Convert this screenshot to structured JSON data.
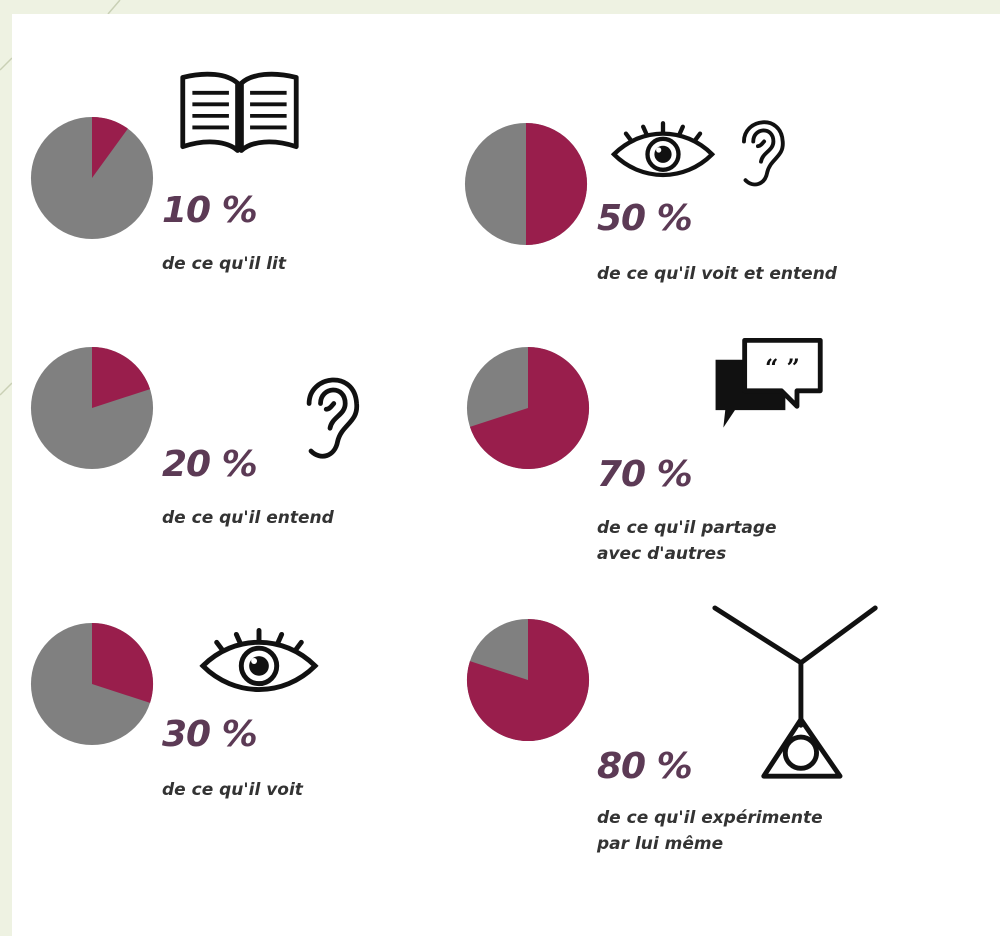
{
  "chart_data": {
    "type": "pie",
    "colors": {
      "remembered": "#991e4c",
      "rest": "#808080"
    },
    "items": [
      {
        "value": 10,
        "percent_label": "10 %",
        "caption": [
          "de ce qu'il lit"
        ],
        "icons": [
          "book-icon"
        ]
      },
      {
        "value": 20,
        "percent_label": "20 %",
        "caption": [
          "de ce qu'il entend"
        ],
        "icons": [
          "ear-icon"
        ]
      },
      {
        "value": 30,
        "percent_label": "30 %",
        "caption": [
          "de ce qu'il voit"
        ],
        "icons": [
          "eye-icon"
        ]
      },
      {
        "value": 50,
        "percent_label": "50 %",
        "caption": [
          "de ce qu'il voit et entend"
        ],
        "icons": [
          "eye-icon",
          "ear-icon"
        ]
      },
      {
        "value": 70,
        "percent_label": "70 %",
        "caption": [
          "de ce qu'il partage",
          "avec d'autres"
        ],
        "icons": [
          "speech-bubble-icon"
        ]
      },
      {
        "value": 80,
        "percent_label": "80 %",
        "caption": [
          "de ce qu'il expérimente",
          "par lui même"
        ],
        "icons": [
          "experiment-icon"
        ]
      }
    ]
  }
}
